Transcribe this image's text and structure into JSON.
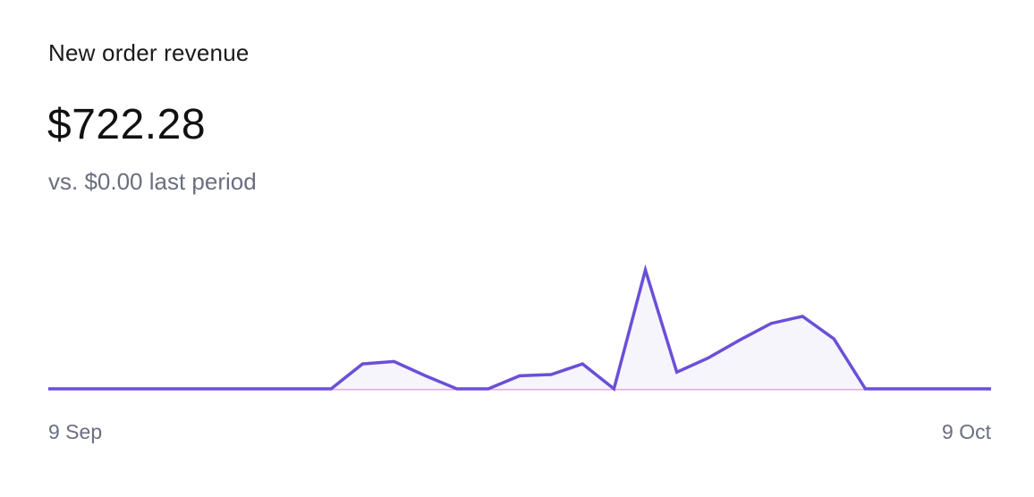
{
  "card": {
    "title": "New order revenue",
    "value": "$722.28",
    "comparison": "vs. $0.00 last period"
  },
  "chart_data": {
    "type": "area",
    "x_start_label": "9 Sep",
    "x_end_label": "9 Oct",
    "ylim": [
      0,
      100
    ],
    "grid": false,
    "legend": "none",
    "series": [
      {
        "role": "current",
        "color": "#6b4fd8",
        "fill": "#f7f5fc",
        "values": [
          0,
          0,
          0,
          0,
          0,
          0,
          0,
          0,
          0,
          0,
          21,
          23,
          11,
          0,
          0,
          11,
          12,
          21,
          0,
          100,
          14,
          26,
          41,
          55,
          61,
          42,
          0,
          0,
          0,
          0,
          0
        ]
      },
      {
        "role": "previous",
        "color": "#e8a6e0",
        "values": [
          0,
          0,
          0,
          0,
          0,
          0,
          0,
          0,
          0,
          0,
          0,
          0,
          0,
          0,
          0,
          0,
          0,
          0,
          0,
          0,
          0,
          0,
          0,
          0,
          0,
          0,
          0,
          0,
          0,
          0,
          0
        ]
      }
    ]
  }
}
